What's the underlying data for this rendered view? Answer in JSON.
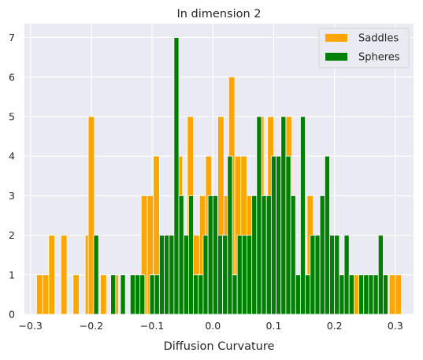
{
  "chart_data": {
    "type": "bar",
    "title": "In dimension 2",
    "xlabel": "Diffusion Curvature",
    "ylabel": "",
    "xlim": [
      -0.31,
      0.33
    ],
    "ylim": [
      0,
      7.35
    ],
    "xticks": [
      -0.3,
      -0.2,
      -0.1,
      0.0,
      0.1,
      0.2,
      0.3
    ],
    "xtick_labels": [
      "−0.3",
      "−0.2",
      "−0.1",
      "0.0",
      "0.1",
      "0.2",
      "0.3"
    ],
    "yticks": [
      0,
      1,
      2,
      3,
      4,
      5,
      6,
      7
    ],
    "ytick_labels": [
      "0",
      "1",
      "2",
      "3",
      "4",
      "5",
      "6",
      "7"
    ],
    "grid": true,
    "legend_position": "top-right",
    "colors": {
      "background": "#eaeaf2",
      "grid": "#ffffff",
      "Saddles": "#ffa500",
      "Spheres": "#008000"
    },
    "series": [
      {
        "name": "Saddles",
        "bin_width": 0.01,
        "bins": [
          [
            -0.29,
            1
          ],
          [
            -0.28,
            1
          ],
          [
            -0.27,
            2
          ],
          [
            -0.25,
            2
          ],
          [
            -0.23,
            1
          ],
          [
            -0.21,
            2
          ],
          [
            -0.205,
            5
          ],
          [
            -0.185,
            1
          ],
          [
            -0.165,
            1
          ],
          [
            -0.118,
            3
          ],
          [
            -0.108,
            3
          ],
          [
            -0.098,
            4
          ],
          [
            -0.078,
            2
          ],
          [
            -0.06,
            4
          ],
          [
            -0.042,
            5
          ],
          [
            -0.032,
            2
          ],
          [
            -0.022,
            3
          ],
          [
            -0.012,
            4
          ],
          [
            -0.002,
            3
          ],
          [
            0.008,
            5
          ],
          [
            0.018,
            3
          ],
          [
            0.026,
            6
          ],
          [
            0.036,
            4
          ],
          [
            0.046,
            4
          ],
          [
            0.056,
            3
          ],
          [
            0.074,
            5
          ],
          [
            0.09,
            5
          ],
          [
            0.11,
            3
          ],
          [
            0.12,
            5
          ],
          [
            0.135,
            1
          ],
          [
            0.155,
            3
          ],
          [
            0.17,
            2
          ],
          [
            0.19,
            2
          ],
          [
            0.21,
            1
          ],
          [
            0.23,
            1
          ],
          [
            0.255,
            1
          ],
          [
            0.275,
            1
          ],
          [
            0.29,
            1
          ],
          [
            0.3,
            1
          ]
        ]
      },
      {
        "name": "Spheres",
        "bin_width": 0.008,
        "bins": [
          [
            -0.196,
            2
          ],
          [
            -0.168,
            1
          ],
          [
            -0.152,
            1
          ],
          [
            -0.136,
            1
          ],
          [
            -0.128,
            1
          ],
          [
            -0.12,
            1
          ],
          [
            -0.104,
            1
          ],
          [
            -0.096,
            1
          ],
          [
            -0.088,
            2
          ],
          [
            -0.08,
            2
          ],
          [
            -0.072,
            2
          ],
          [
            -0.064,
            7
          ],
          [
            -0.056,
            3
          ],
          [
            -0.048,
            2
          ],
          [
            -0.04,
            3
          ],
          [
            -0.032,
            1
          ],
          [
            -0.024,
            1
          ],
          [
            -0.016,
            2
          ],
          [
            -0.008,
            3
          ],
          [
            0.0,
            3
          ],
          [
            0.008,
            2
          ],
          [
            0.016,
            2
          ],
          [
            0.024,
            4
          ],
          [
            0.032,
            1
          ],
          [
            0.04,
            2
          ],
          [
            0.048,
            2
          ],
          [
            0.056,
            2
          ],
          [
            0.064,
            3
          ],
          [
            0.072,
            5
          ],
          [
            0.08,
            3
          ],
          [
            0.088,
            3
          ],
          [
            0.096,
            4
          ],
          [
            0.104,
            4
          ],
          [
            0.112,
            5
          ],
          [
            0.12,
            4
          ],
          [
            0.128,
            3
          ],
          [
            0.136,
            1
          ],
          [
            0.144,
            5
          ],
          [
            0.152,
            1
          ],
          [
            0.16,
            2
          ],
          [
            0.168,
            2
          ],
          [
            0.176,
            3
          ],
          [
            0.184,
            4
          ],
          [
            0.192,
            2
          ],
          [
            0.2,
            2
          ],
          [
            0.208,
            1
          ],
          [
            0.216,
            2
          ],
          [
            0.224,
            1
          ],
          [
            0.24,
            1
          ],
          [
            0.248,
            1
          ],
          [
            0.256,
            1
          ],
          [
            0.264,
            1
          ],
          [
            0.272,
            2
          ],
          [
            0.28,
            1
          ]
        ]
      }
    ]
  }
}
